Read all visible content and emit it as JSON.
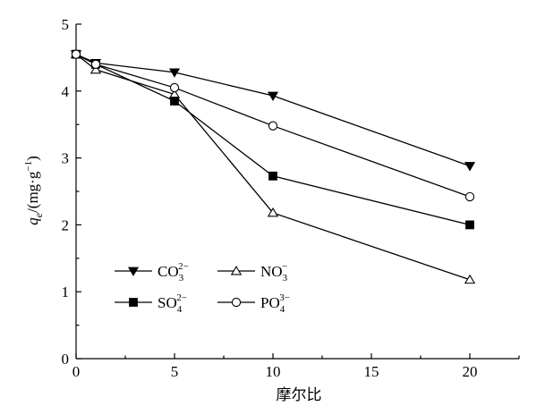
{
  "chart_data": {
    "type": "line",
    "xlabel": "摩尔比",
    "ylabel": {
      "q": "q",
      "sub": "e",
      "unit_start": "/(mg·g",
      "unit_sup": "−1",
      "unit_end": ")"
    },
    "xlim": [
      0,
      22.5
    ],
    "ylim": [
      0,
      5
    ],
    "xticks": [
      0,
      5,
      10,
      15,
      20
    ],
    "yticks": [
      0,
      1,
      2,
      3,
      4,
      5
    ],
    "grid": false,
    "legend_position": "lower-left",
    "series": [
      {
        "id": "co3",
        "marker": "triangle-down-filled",
        "legend": {
          "base": "CO",
          "sub": "3",
          "sup": "2−"
        },
        "x": [
          0,
          1,
          5,
          10,
          20
        ],
        "y": [
          4.55,
          4.42,
          4.28,
          3.93,
          2.88
        ]
      },
      {
        "id": "no3",
        "marker": "triangle-up-open",
        "legend": {
          "base": "NO",
          "sub": "3",
          "sup": "−"
        },
        "x": [
          0,
          1,
          5,
          10,
          20
        ],
        "y": [
          4.55,
          4.32,
          3.95,
          2.18,
          1.18
        ]
      },
      {
        "id": "so4",
        "marker": "square-filled",
        "legend": {
          "base": "SO",
          "sub": "4",
          "sup": "2−"
        },
        "x": [
          0,
          1,
          5,
          10,
          20
        ],
        "y": [
          4.55,
          4.4,
          3.85,
          2.73,
          2.0
        ]
      },
      {
        "id": "po4",
        "marker": "circle-open",
        "legend": {
          "base": "PO",
          "sub": "4",
          "sup": "3−"
        },
        "x": [
          0,
          1,
          5,
          10,
          20
        ],
        "y": [
          4.55,
          4.4,
          4.05,
          3.48,
          2.42
        ]
      }
    ]
  }
}
